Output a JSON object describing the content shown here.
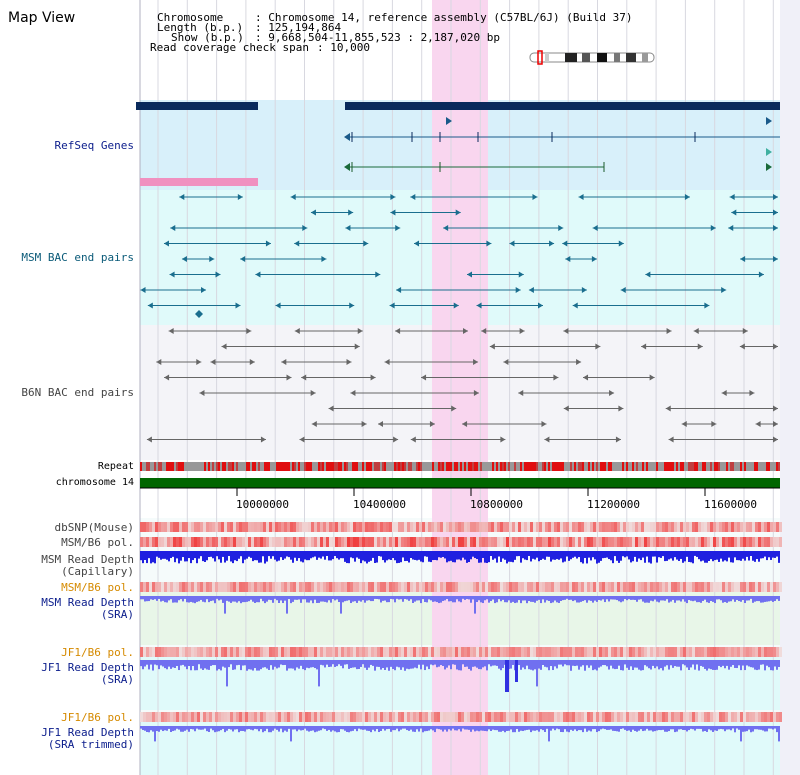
{
  "header": {
    "title": "Map View",
    "info": {
      "chromosome_key": "Chromosome",
      "chromosome_val": ": Chromosome 14, reference assembly (C57BL/6J) (Build 37)",
      "length_key": "Length (b.p.)",
      "length_val": ": 125,194,864",
      "show_key": "Show (b.p.)",
      "show_val": ": 9,668,504-11,855,523 : 2,187,020 bp",
      "span_key": "Read coverage check span",
      "span_val": ": 10,000"
    }
  },
  "tracks": {
    "refseq": "RefSeq Genes",
    "msm_bac": "MSM BAC end pairs",
    "b6n_bac": "B6N BAC end pairs",
    "repeat": "Repeat",
    "chromosome": "chromosome 14",
    "dbsnp": "dbSNP(Mouse)",
    "msm_b6_pol_1": "MSM/B6 pol.",
    "msm_read_depth_cap_1": "MSM Read Depth",
    "msm_read_depth_cap_2": "(Capillary)",
    "msm_b6_pol_2": "MSM/B6 pol.",
    "msm_read_depth_sra_1": "MSM Read Depth",
    "msm_read_depth_sra_2": "(SRA)",
    "jf1_b6_pol_1": "JF1/B6 pol.",
    "jf1_read_depth_sra_1": "JF1 Read Depth",
    "jf1_read_depth_sra_2": "(SRA)",
    "jf1_b6_pol_2": "JF1/B6 pol.",
    "jf1_read_depth_trim_1": "JF1 Read Depth",
    "jf1_read_depth_trim_2": "(SRA trimmed)"
  },
  "axis": {
    "ticks": [
      "10000000",
      "10400000",
      "10800000",
      "11200000",
      "11600000"
    ]
  },
  "colors": {
    "highlight": "#f9d6ef",
    "refseq_bg": "#d8f0fa",
    "msm_bg": "#e0fafa",
    "gene_navy": "#0a2a5c",
    "repeat_red": "#e01010",
    "chrom_green": "#006600",
    "depth_blue": "#2020e0",
    "depth_light": "#7070f0"
  }
}
